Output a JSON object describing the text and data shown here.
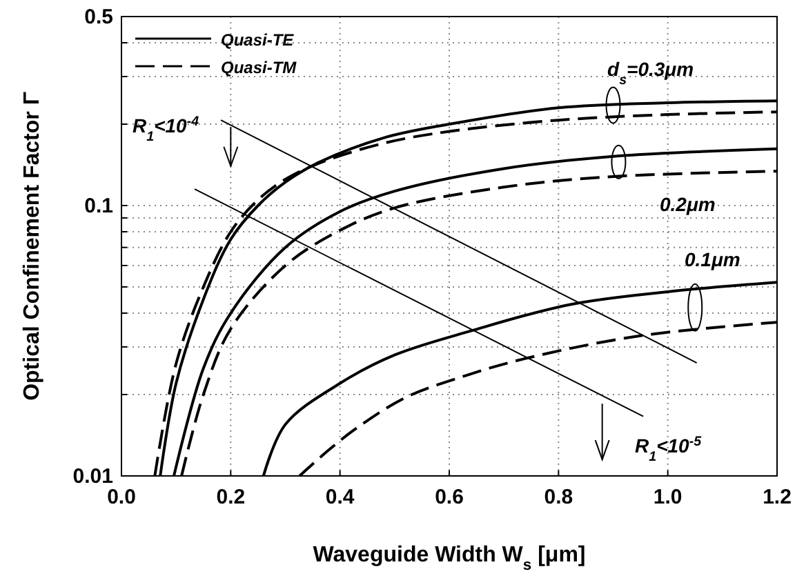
{
  "chart_data": {
    "type": "line",
    "xlabel": "Waveguide Width W$_{s}$ [μm]",
    "ylabel": "Optical Confinement Factor Γ",
    "log": "y",
    "xlim": [
      0,
      1.2
    ],
    "ylim": [
      0.01,
      0.5
    ],
    "xticks": [
      {
        "value": 0,
        "label": "0.0"
      },
      {
        "value": 0.2,
        "label": "0.2"
      },
      {
        "value": 0.4,
        "label": "0.4"
      },
      {
        "value": 0.6,
        "label": "0.6"
      },
      {
        "value": 0.8,
        "label": "0.8"
      },
      {
        "value": 1,
        "label": "1.0"
      },
      {
        "value": 1.2,
        "label": "1.2"
      }
    ],
    "yticks": [
      0.01,
      {
        "value": 0.02,
        "label": null
      },
      {
        "value": 0.03,
        "label": null
      },
      {
        "value": 0.04,
        "label": null
      },
      {
        "value": 0.05,
        "label": null
      },
      {
        "value": 0.06,
        "label": null
      },
      {
        "value": 0.07,
        "label": null
      },
      {
        "value": 0.08,
        "label": null
      },
      {
        "value": 0.09,
        "label": null
      },
      0.1,
      {
        "value": 0.2,
        "label": null
      },
      {
        "value": 0.3,
        "label": null
      },
      {
        "value": 0.4,
        "label": null
      },
      0.5
    ],
    "grid": true,
    "legend": "top left",
    "marker": "none",
    "series": [
      {
        "name": "Quasi-TE",
        "color": "#000000",
        "line_style": "solid",
        "x": [
          0.071,
          0.1,
          0.15,
          0.2,
          0.25,
          0.3,
          0.36,
          0.48,
          0.6,
          0.8,
          1.0,
          1.2
        ],
        "values": [
          0.01,
          0.022,
          0.045,
          0.075,
          0.1,
          0.122,
          0.144,
          0.178,
          0.2,
          0.23,
          0.24,
          0.244
        ]
      },
      {
        "name": "Quasi-TM",
        "color": "#000000",
        "line_style": "dashed",
        "x": [
          0.061,
          0.1,
          0.15,
          0.2,
          0.25,
          0.3,
          0.36,
          0.48,
          0.6,
          0.8,
          1.0,
          1.2
        ],
        "values": [
          0.01,
          0.026,
          0.05,
          0.08,
          0.105,
          0.125,
          0.143,
          0.17,
          0.188,
          0.207,
          0.217,
          0.222
        ]
      },
      {
        "color": "#000000",
        "line_style": "solid",
        "x": [
          0.096,
          0.15,
          0.2,
          0.3,
          0.4,
          0.5,
          0.7,
          0.9,
          1.2
        ],
        "values": [
          0.01,
          0.025,
          0.04,
          0.07,
          0.095,
          0.113,
          0.137,
          0.152,
          0.162
        ]
      },
      {
        "color": "#000000",
        "line_style": "dashed",
        "x": [
          0.11,
          0.15,
          0.2,
          0.3,
          0.4,
          0.5,
          0.7,
          0.9,
          1.2
        ],
        "values": [
          0.01,
          0.02,
          0.035,
          0.06,
          0.081,
          0.098,
          0.117,
          0.128,
          0.134
        ]
      },
      {
        "color": "#000000",
        "line_style": "solid",
        "x": [
          0.26,
          0.3,
          0.4,
          0.5,
          0.64,
          0.82,
          1.0,
          1.2
        ],
        "values": [
          0.01,
          0.0155,
          0.022,
          0.028,
          0.0344,
          0.043,
          0.048,
          0.052
        ]
      },
      {
        "color": "#000000",
        "line_style": "dashed",
        "x": [
          0.326,
          0.38,
          0.43,
          0.52,
          0.63,
          0.74,
          0.95,
          1.2
        ],
        "values": [
          0.01,
          0.0125,
          0.015,
          0.0195,
          0.0235,
          0.0272,
          0.033,
          0.037
        ]
      },
      {
        "color": "#000000",
        "line_style": "solid",
        "x": [
          0.182,
          1.053
        ],
        "values": [
          0.207,
          0.0262
        ]
      },
      {
        "color": "#000000",
        "line_style": "solid",
        "x": [
          0.134,
          0.955
        ],
        "values": [
          0.115,
          0.0166
        ]
      }
    ],
    "annotations": [
      "d$_{s}$=0.3μm",
      "0.2μm",
      "0.1μm",
      "R$_{1}$<10$^{-4}$",
      "R$_{1}$<10$^{-5}$"
    ]
  }
}
